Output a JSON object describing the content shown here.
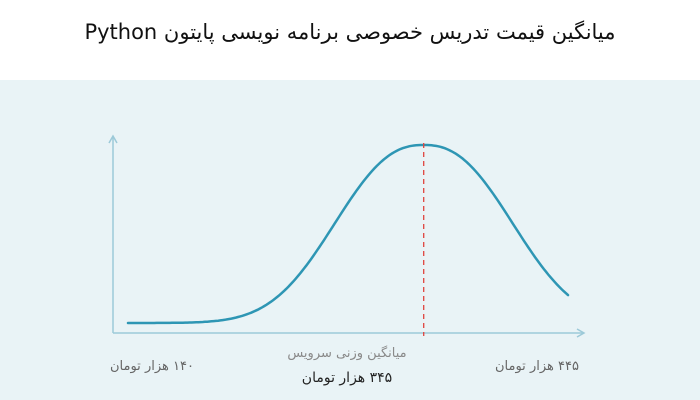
{
  "title": "میانگین قیمت تدریس خصوصی برنامه نویسی پایتون Python",
  "chart_data": {
    "type": "line",
    "x_left_label": "۱۴۰ هزار تومان",
    "x_right_label": "۴۴۵ هزار تومان",
    "mean_caption": "میانگین وزنی سرویس",
    "mean_value_label": "۳۴۵ هزار تومان",
    "xlim": [
      140,
      445
    ],
    "mean": 345,
    "curve_shape": "bell",
    "grid": false,
    "legend": "none",
    "colors": {
      "curve": "#2e96b4",
      "axis": "#9cc9d8",
      "mean_line": "#e0443e",
      "background": "#e9f3f6"
    }
  }
}
